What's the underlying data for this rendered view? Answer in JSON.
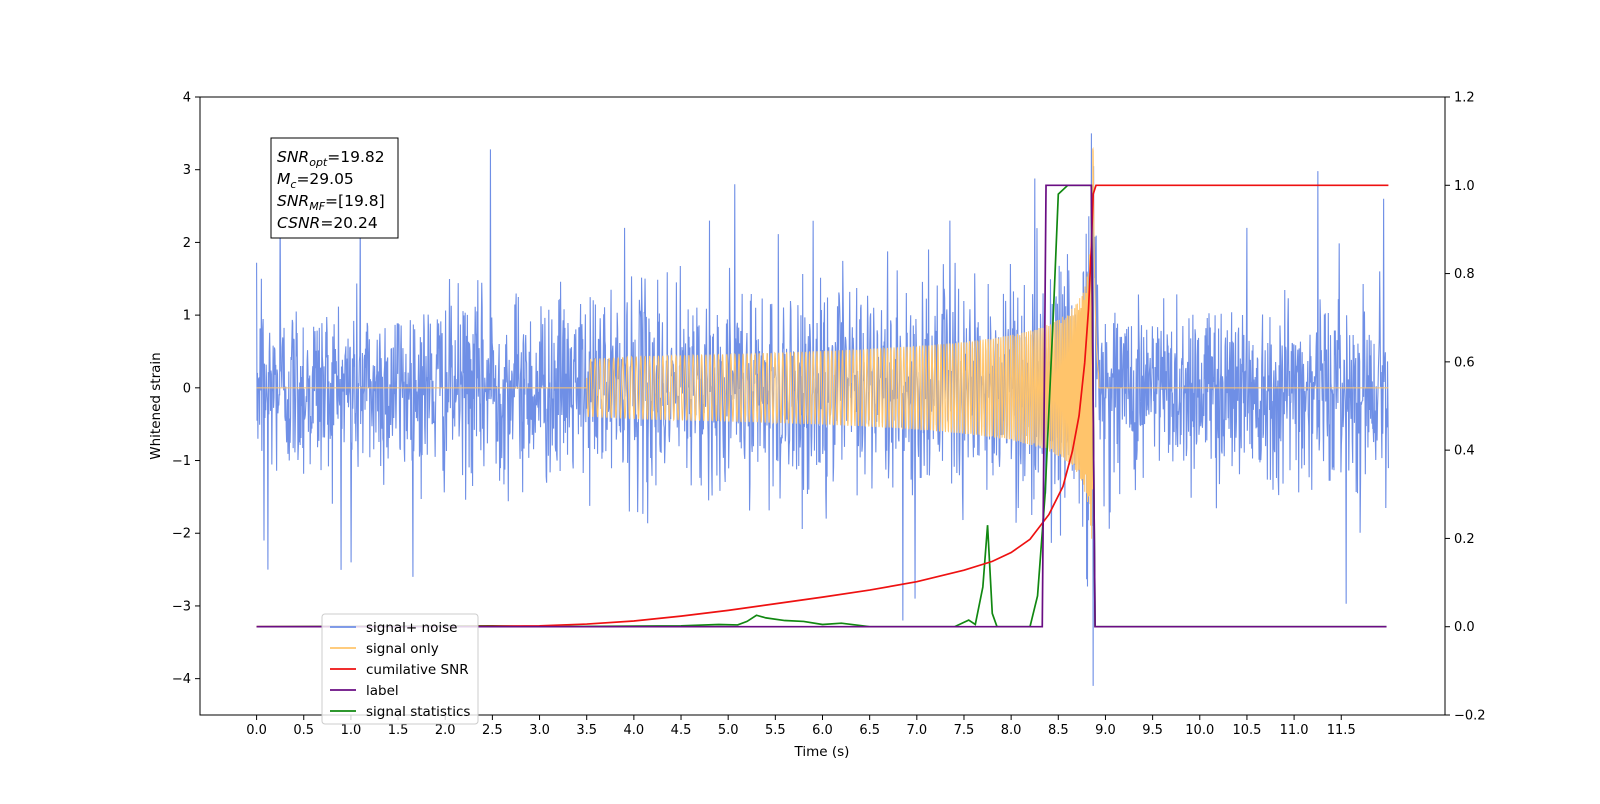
{
  "chart_data": {
    "type": "line",
    "xlabel": "Time (s)",
    "ylabel": "Whitened strain",
    "xlim": [
      -0.6,
      12.6
    ],
    "ylim_left": [
      -4.5,
      4.0
    ],
    "ylim_right": [
      -0.2,
      1.2
    ],
    "x_ticks": [
      0.0,
      0.5,
      1.0,
      1.5,
      2.0,
      2.5,
      3.0,
      3.5,
      4.0,
      4.5,
      5.0,
      5.5,
      6.0,
      6.5,
      7.0,
      7.5,
      8.0,
      8.5,
      9.0,
      9.5,
      10.0,
      10.5,
      11.0,
      11.5
    ],
    "x_tick_labels": [
      "0.0",
      "0.5",
      "1.0",
      "1.5",
      "2.0",
      "2.5",
      "3.0",
      "3.5",
      "4.0",
      "4.5",
      "5.0",
      "5.5",
      "6.0",
      "6.5",
      "7.0",
      "7.5",
      "8.0",
      "8.5",
      "9.0",
      "9.5",
      "10.0",
      "10.5",
      "11.0",
      "11.5"
    ],
    "y_left_ticks": [
      4,
      3,
      2,
      1,
      0,
      -1,
      -2,
      -3,
      -4
    ],
    "y_left_tick_labels": [
      "4",
      "3",
      "2",
      "1",
      "0",
      "−1",
      "−2",
      "−3",
      "−4"
    ],
    "y_right_ticks": [
      1.2,
      1.0,
      0.8,
      0.6,
      0.4,
      0.2,
      0.0,
      -0.2
    ],
    "y_right_tick_labels": [
      "1.2",
      "1.0",
      "0.8",
      "0.6",
      "0.4",
      "0.2",
      "0.0",
      "−0.2"
    ],
    "annotation": [
      {
        "base": "SNR",
        "sub": "opt",
        "value": "=19.82"
      },
      {
        "base": "M",
        "sub": "c",
        "value": "=29.05"
      },
      {
        "base": "SNR",
        "sub": "MF",
        "value": "=[19.8]"
      },
      {
        "base": "CSNR",
        "sub": "",
        "value": "=20.24"
      }
    ],
    "legend_position": "lower-left",
    "series": [
      {
        "name": "signal+ noise",
        "color": "#6f8fe6",
        "axis": "left",
        "noise_std": 0.62,
        "t_start": 0.0,
        "t_end": 12.0,
        "spikes": [
          [
            0.05,
            1.5
          ],
          [
            0.08,
            -2.1
          ],
          [
            0.12,
            -2.5
          ],
          [
            0.25,
            2.7
          ],
          [
            1.0,
            -2.4
          ],
          [
            1.1,
            2.5
          ],
          [
            2.48,
            3.28
          ],
          [
            3.9,
            2.2
          ],
          [
            4.8,
            2.3
          ],
          [
            5.07,
            2.8
          ],
          [
            6.98,
            -2.9
          ],
          [
            6.85,
            -3.2
          ],
          [
            7.35,
            2.3
          ],
          [
            8.77,
            1.6
          ],
          [
            8.87,
            -4.1
          ],
          [
            8.85,
            3.5
          ],
          [
            10.5,
            2.2
          ],
          [
            11.25,
            2.98
          ],
          [
            11.55,
            -2.97
          ],
          [
            11.95,
            2.6
          ]
        ]
      },
      {
        "name": "signal only",
        "color": "#ffc46b",
        "axis": "left",
        "chirp": {
          "t_merger": 8.87,
          "t_start": 3.5,
          "peak": 3.65,
          "ringdown": 0.02
        }
      },
      {
        "name": "cumilative SNR",
        "color": "#ee1111",
        "axis": "right",
        "x": [
          0.0,
          2.0,
          3.0,
          3.5,
          4.0,
          4.5,
          5.0,
          5.5,
          6.0,
          6.5,
          7.0,
          7.5,
          7.8,
          8.0,
          8.2,
          8.4,
          8.55,
          8.65,
          8.72,
          8.78,
          8.82,
          8.85,
          8.87,
          8.9,
          12.0
        ],
        "y": [
          0.0,
          0.0,
          0.002,
          0.006,
          0.013,
          0.024,
          0.037,
          0.052,
          0.067,
          0.083,
          0.102,
          0.128,
          0.148,
          0.168,
          0.198,
          0.254,
          0.318,
          0.398,
          0.478,
          0.598,
          0.718,
          0.86,
          0.98,
          1.0,
          1.0
        ]
      },
      {
        "name": "label",
        "color": "#6a0d83",
        "axis": "right",
        "x": [
          0.0,
          8.33,
          8.37,
          8.85,
          8.89,
          11.98
        ],
        "y": [
          0.0,
          0.0,
          1.0,
          1.0,
          0.0,
          0.0
        ]
      },
      {
        "name": "signal statistics",
        "color": "#118811",
        "axis": "right",
        "x": [
          0.0,
          2.5,
          3.0,
          4.5,
          4.9,
          5.1,
          5.2,
          5.3,
          5.4,
          5.6,
          5.8,
          6.0,
          6.2,
          6.5,
          7.0,
          7.4,
          7.55,
          7.62,
          7.7,
          7.75,
          7.8,
          7.85,
          8.2,
          8.28,
          8.36,
          8.45,
          8.5,
          8.6,
          8.85,
          8.89,
          11.98
        ],
        "y": [
          0.0,
          0.002,
          0.0,
          0.002,
          0.005,
          0.004,
          0.012,
          0.026,
          0.02,
          0.014,
          0.012,
          0.005,
          0.008,
          0.0,
          0.0,
          0.0,
          0.015,
          0.005,
          0.09,
          0.23,
          0.03,
          0.0,
          0.0,
          0.07,
          0.3,
          0.72,
          0.98,
          1.0,
          1.0,
          0.0,
          0.0
        ]
      }
    ]
  }
}
